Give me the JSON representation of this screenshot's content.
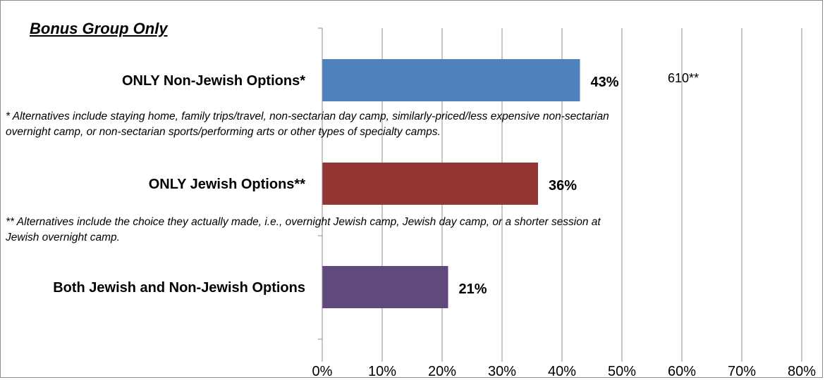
{
  "chart_data": {
    "type": "bar",
    "orientation": "horizontal",
    "title": "Bonus Group Only",
    "categories": [
      "ONLY Non-Jewish Options*",
      "ONLY Jewish Options**",
      "Both Jewish and Non-Jewish Options"
    ],
    "values": [
      43,
      36,
      21
    ],
    "data_labels": [
      "43%",
      "36%",
      "21%"
    ],
    "colors": [
      "#4f81bd",
      "#943634",
      "#604a7b"
    ],
    "xlim": [
      0,
      80
    ],
    "x_ticks": [
      "0%",
      "10%",
      "20%",
      "30%",
      "40%",
      "50%",
      "60%",
      "70%",
      "80%"
    ],
    "grid": true,
    "legend": "none",
    "annotations": {
      "sample_note": "610**",
      "footnote_1": [
        "* Alternatives include staying home, family trips/travel, non-sectarian day camp, similarly-priced/less expensive non-sectarian",
        "overnight camp, or non-sectarian sports/performing arts or other types of specialty camps."
      ],
      "footnote_2": [
        "** Alternatives include the choice they actually made, i.e., overnight Jewish camp, Jewish day camp, or a shorter session at",
        "Jewish overnight camp."
      ]
    }
  }
}
